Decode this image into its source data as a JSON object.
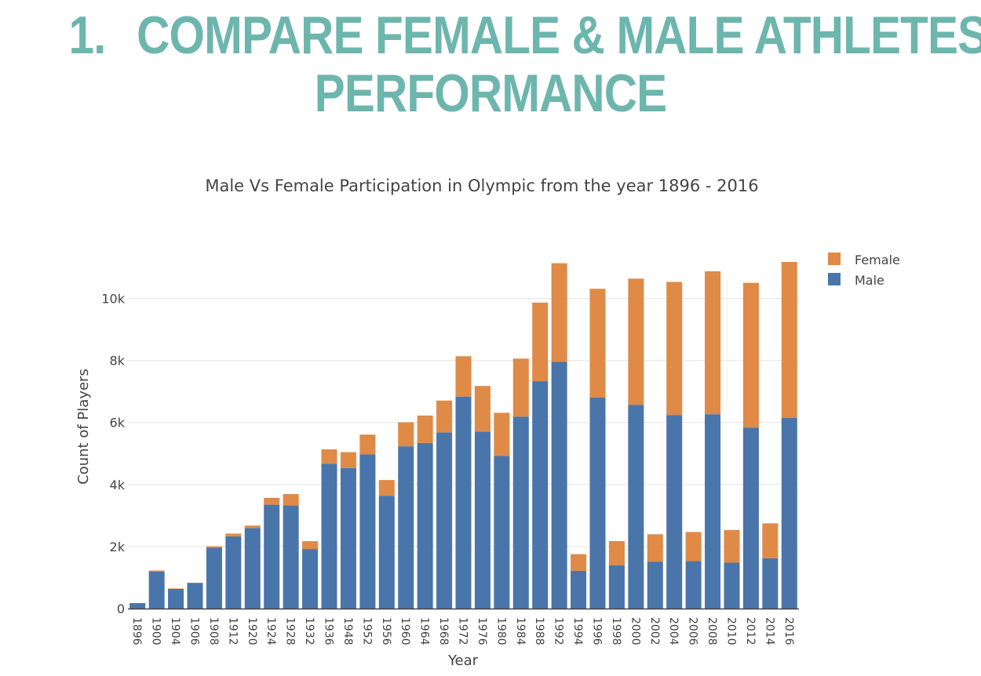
{
  "heading": {
    "number": "1.",
    "line1": "COMPARE FEMALE & MALE ATHLETES’",
    "line2": "PERFORMANCE"
  },
  "colors": {
    "heading": "#6db6ad",
    "female": "#e08a47",
    "male": "#4a75ab"
  },
  "chart_data": {
    "type": "bar",
    "stacked": true,
    "title": "Male Vs Female Participation in Olympic from the year 1896 - 2016",
    "xlabel": "Year",
    "ylabel": "Count of Players",
    "ylim": [
      0,
      11200
    ],
    "y_ticks": [
      0,
      2000,
      4000,
      6000,
      8000,
      10000
    ],
    "y_tick_labels": [
      "0",
      "2k",
      "4k",
      "6k",
      "8k",
      "10k"
    ],
    "grid": true,
    "legend_position": "top-right",
    "categories": [
      "1896",
      "1900",
      "1904",
      "1906",
      "1908",
      "1912",
      "1920",
      "1924",
      "1928",
      "1932",
      "1936",
      "1948",
      "1952",
      "1956",
      "1960",
      "1964",
      "1968",
      "1972",
      "1976",
      "1980",
      "1984",
      "1988",
      "1992",
      "1994",
      "1996",
      "1998",
      "2000",
      "2002",
      "2004",
      "2006",
      "2008",
      "2010",
      "2012",
      "2014",
      "2016"
    ],
    "series": [
      {
        "name": "Female",
        "color": "#e08a47",
        "values": [
          0,
          33,
          16,
          11,
          47,
          87,
          78,
          222,
          369,
          253,
          468,
          512,
          634,
          507,
          775,
          883,
          1026,
          1301,
          1476,
          1386,
          1869,
          2533,
          3181,
          539,
          3509,
          784,
          4068,
          882,
          4291,
          939,
          4609,
          1054,
          4666,
          1126,
          5032
        ]
      },
      {
        "name": "Male",
        "color": "#4a75ab",
        "values": [
          176,
          1196,
          634,
          822,
          1961,
          2330,
          2598,
          3347,
          3323,
          1920,
          4665,
          4530,
          4974,
          3636,
          5230,
          5340,
          5679,
          6833,
          5700,
          4925,
          6189,
          7330,
          7952,
          1215,
          6800,
          1391,
          6569,
          1513,
          6240,
          1529,
          6265,
          1480,
          5835,
          1621,
          6143
        ]
      }
    ]
  }
}
